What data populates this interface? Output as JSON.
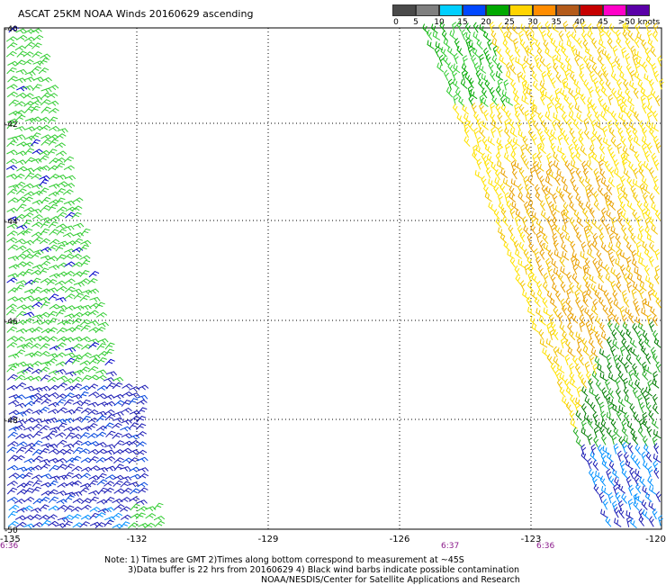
{
  "title": "ASCAT 25KM NOAA Winds 20160629 ascending",
  "speed_scale": {
    "labels": [
      "0",
      "5",
      "10",
      "15",
      "20",
      "25",
      "30",
      "35",
      "40",
      "45",
      ">50 knots"
    ],
    "colors": [
      "#4a4a4a",
      "#7f7f7f",
      "#00cfff",
      "#0047ff",
      "#00a800",
      "#ffd400",
      "#ff8c00",
      "#b35a1a",
      "#c60000",
      "#ff00c8",
      "#5a00a8"
    ]
  },
  "longitudes": [
    "-135",
    "-132",
    "-129",
    "-126",
    "-123",
    "-120"
  ],
  "latitudes": [
    "-40",
    "-42",
    "-44",
    "-46",
    "-48",
    "-50"
  ],
  "times": [
    "6:36",
    "6:37",
    "6:36"
  ],
  "notes": {
    "line1": "Note: 1) Times are GMT 2)Times along bottom correspond to measurement at ~45S",
    "line2": "3)Data buffer is 22 hrs from 20160629 4) Black wind barbs indicate possible contamination",
    "line3": "NOAA/NESDIS/Center for Satellite Applications and Research"
  }
}
